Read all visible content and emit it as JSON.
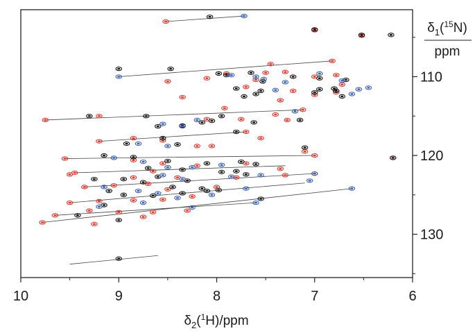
{
  "chart_data": {
    "type": "scatter",
    "subtype": "2D 1H-15N HSQC NMR overlay (contour peaks)",
    "title": "",
    "xlabel": {
      "prefix": "δ",
      "sub": "2",
      "mid": "(",
      "sup": "1",
      "suffix": "H)/ppm"
    },
    "ylabel": {
      "prefix": "δ",
      "sub": "1",
      "mid": "(",
      "sup": "15",
      "suffix": "N)",
      "unit": "ppm"
    },
    "x_reversed": true,
    "y_reversed": true,
    "xlim": [
      10,
      6
    ],
    "ylim": [
      101.5,
      135.5
    ],
    "x_ticks": [
      10,
      9,
      8,
      7,
      6
    ],
    "y_ticks": [
      110,
      120,
      130
    ],
    "grid": false,
    "colors": {
      "red": "#d9382b",
      "black": "#111111",
      "blue": "#3c5fb0",
      "line": "#444444"
    },
    "series": [
      {
        "color": "red",
        "points": [
          [
            8.52,
            103.0
          ],
          [
            7.0,
            104.1
          ],
          [
            6.52,
            104.8
          ],
          [
            7.22,
            111.8
          ],
          [
            6.78,
            112.0
          ],
          [
            6.72,
            111.0
          ],
          [
            6.82,
            108.0
          ],
          [
            7.0,
            110.0
          ],
          [
            7.0,
            112.3
          ],
          [
            7.35,
            113.0
          ],
          [
            7.5,
            109.5
          ],
          [
            7.7,
            111.3
          ],
          [
            7.9,
            109.6
          ],
          [
            7.6,
            110.4
          ],
          [
            8.1,
            110.2
          ],
          [
            8.5,
            110.6
          ],
          [
            9.75,
            115.5
          ],
          [
            9.2,
            115.0
          ],
          [
            8.1,
            115.4
          ],
          [
            7.75,
            115.4
          ],
          [
            7.4,
            114.8
          ],
          [
            7.28,
            115.5
          ],
          [
            7.92,
            114.0
          ],
          [
            7.12,
            114.2
          ],
          [
            7.7,
            117.0
          ],
          [
            9.2,
            118.2
          ],
          [
            8.85,
            117.8
          ],
          [
            8.55,
            118.1
          ],
          [
            8.2,
            118.8
          ],
          [
            9.55,
            120.4
          ],
          [
            8.85,
            120.6
          ],
          [
            8.55,
            121.0
          ],
          [
            8.2,
            121.3
          ],
          [
            7.7,
            121.0
          ],
          [
            7.35,
            121.7
          ],
          [
            7.0,
            120.0
          ],
          [
            8.65,
            122.0
          ],
          [
            9.45,
            122.2
          ],
          [
            8.85,
            122.8
          ],
          [
            8.4,
            122.8
          ],
          [
            7.8,
            122.8
          ],
          [
            7.3,
            122.5
          ],
          [
            7.0,
            122.3
          ],
          [
            9.35,
            124.0
          ],
          [
            9.05,
            123.8
          ],
          [
            8.7,
            123.6
          ],
          [
            8.5,
            124.3
          ],
          [
            8.0,
            124.0
          ],
          [
            9.5,
            126.0
          ],
          [
            9.2,
            125.8
          ],
          [
            8.85,
            125.7
          ],
          [
            8.55,
            125.6
          ],
          [
            8.25,
            125.2
          ],
          [
            9.65,
            127.6
          ],
          [
            9.3,
            127.0
          ],
          [
            9.0,
            127.2
          ],
          [
            8.3,
            127.0
          ],
          [
            9.78,
            128.5
          ],
          [
            9.25,
            128.7
          ],
          [
            8.75,
            127.8
          ],
          [
            8.65,
            127.2
          ],
          [
            6.2,
            120.3
          ],
          [
            6.78,
            109.8
          ],
          [
            7.45,
            108.4
          ],
          [
            7.3,
            109.4
          ],
          [
            8.05,
            118.8
          ],
          [
            7.1,
            119.5
          ],
          [
            8.35,
            112.6
          ],
          [
            9.5,
            122.4
          ],
          [
            7.55,
            117.8
          ]
        ]
      },
      {
        "color": "black",
        "points": [
          [
            8.07,
            102.4
          ],
          [
            7.0,
            104.0
          ],
          [
            6.52,
            104.7
          ],
          [
            6.22,
            104.7
          ],
          [
            8.47,
            109.0
          ],
          [
            9.0,
            109.0
          ],
          [
            7.98,
            109.6
          ],
          [
            7.9,
            109.8
          ],
          [
            7.65,
            109.5
          ],
          [
            7.53,
            110.6
          ],
          [
            7.55,
            111.8
          ],
          [
            7.8,
            111.5
          ],
          [
            7.72,
            112.5
          ],
          [
            7.6,
            112.2
          ],
          [
            7.22,
            110.0
          ],
          [
            6.95,
            110.2
          ],
          [
            7.0,
            112.0
          ],
          [
            6.8,
            111.5
          ],
          [
            6.72,
            112.5
          ],
          [
            6.78,
            111.8
          ],
          [
            9.3,
            115.0
          ],
          [
            8.72,
            115.0
          ],
          [
            8.6,
            116.3
          ],
          [
            8.35,
            116.2
          ],
          [
            8.15,
            115.8
          ],
          [
            8.05,
            115.6
          ],
          [
            7.95,
            115.0
          ],
          [
            7.62,
            115.8
          ],
          [
            7.8,
            117.0
          ],
          [
            7.15,
            115.5
          ],
          [
            8.92,
            118.5
          ],
          [
            8.55,
            117.8
          ],
          [
            8.4,
            118.6
          ],
          [
            9.15,
            120.0
          ],
          [
            8.85,
            120.2
          ],
          [
            8.5,
            120.7
          ],
          [
            8.1,
            121.0
          ],
          [
            7.75,
            120.8
          ],
          [
            7.6,
            121.1
          ],
          [
            8.7,
            121.6
          ],
          [
            8.35,
            121.8
          ],
          [
            7.8,
            122.0
          ],
          [
            7.7,
            122.4
          ],
          [
            7.95,
            122.1
          ],
          [
            7.1,
            119.0
          ],
          [
            9.25,
            123.0
          ],
          [
            8.95,
            123.0
          ],
          [
            8.75,
            123.4
          ],
          [
            8.6,
            122.7
          ],
          [
            8.3,
            123.2
          ],
          [
            8.15,
            124.2
          ],
          [
            7.98,
            124.4
          ],
          [
            9.1,
            124.5
          ],
          [
            8.95,
            125.0
          ],
          [
            8.65,
            125.1
          ],
          [
            8.35,
            124.8
          ],
          [
            8.1,
            124.5
          ],
          [
            9.42,
            127.6
          ],
          [
            9.15,
            126.3
          ],
          [
            9.0,
            128.2
          ],
          [
            8.45,
            124.0
          ],
          [
            7.55,
            125.5
          ],
          [
            9.0,
            133.1
          ],
          [
            6.2,
            120.3
          ],
          [
            6.95,
            111.6
          ],
          [
            6.68,
            110.4
          ]
        ]
      },
      {
        "color": "blue",
        "points": [
          [
            7.72,
            102.3
          ],
          [
            9.0,
            110.0
          ],
          [
            7.85,
            109.8
          ],
          [
            7.6,
            110.0
          ],
          [
            7.3,
            110.7
          ],
          [
            6.95,
            109.6
          ],
          [
            6.72,
            110.5
          ],
          [
            6.62,
            112.2
          ],
          [
            6.55,
            111.6
          ],
          [
            6.45,
            111.4
          ],
          [
            8.55,
            116.0
          ],
          [
            8.35,
            116.3
          ],
          [
            8.2,
            115.5
          ],
          [
            7.2,
            114.4
          ],
          [
            8.8,
            118.5
          ],
          [
            8.5,
            118.8
          ],
          [
            9.05,
            120.3
          ],
          [
            8.75,
            120.8
          ],
          [
            8.5,
            121.5
          ],
          [
            8.25,
            121.5
          ],
          [
            7.95,
            121.2
          ],
          [
            8.55,
            122.5
          ],
          [
            8.35,
            123.0
          ],
          [
            7.85,
            122.7
          ],
          [
            7.55,
            122.5
          ],
          [
            7.0,
            122.3
          ],
          [
            9.15,
            124.0
          ],
          [
            8.8,
            124.5
          ],
          [
            8.6,
            124.8
          ],
          [
            8.4,
            125.4
          ],
          [
            8.05,
            125.0
          ],
          [
            7.7,
            124.2
          ],
          [
            6.62,
            124.2
          ],
          [
            9.2,
            126.5
          ],
          [
            8.75,
            126.0
          ],
          [
            8.25,
            126.6
          ],
          [
            7.6,
            126.0
          ],
          [
            7.05,
            123.2
          ],
          [
            7.4,
            111.7
          ],
          [
            7.52,
            110.3
          ]
        ]
      }
    ],
    "linked_segments": [
      [
        [
          8.52,
          103.0
        ],
        [
          7.72,
          102.3
        ]
      ],
      [
        [
          9.0,
          110.0
        ],
        [
          6.82,
          108.0
        ]
      ],
      [
        [
          9.75,
          115.5
        ],
        [
          7.12,
          114.2
        ]
      ],
      [
        [
          9.2,
          118.2
        ],
        [
          7.7,
          117.0
        ]
      ],
      [
        [
          9.55,
          120.4
        ],
        [
          7.0,
          120.0
        ]
      ],
      [
        [
          9.45,
          122.2
        ],
        [
          7.3,
          121.3
        ]
      ],
      [
        [
          9.35,
          124.0
        ],
        [
          7.0,
          122.3
        ]
      ],
      [
        [
          9.5,
          126.0
        ],
        [
          7.1,
          123.5
        ]
      ],
      [
        [
          9.65,
          127.6
        ],
        [
          7.6,
          126.0
        ]
      ],
      [
        [
          9.78,
          128.5
        ],
        [
          6.62,
          124.2
        ]
      ],
      [
        [
          9.5,
          133.8
        ],
        [
          8.6,
          132.7
        ]
      ]
    ]
  }
}
